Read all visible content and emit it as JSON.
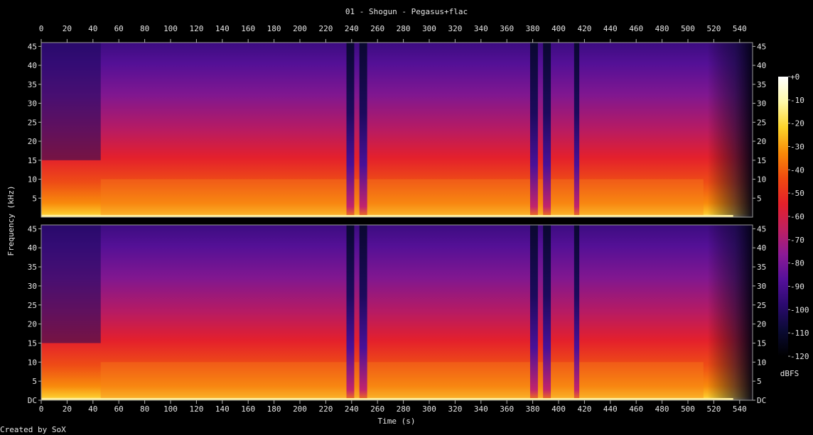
{
  "title": "01 - Shogun - Pegasus+flac",
  "credit": "Created by SoX",
  "chart_data": {
    "type": "heatmap",
    "subtype": "spectrogram",
    "title": "01 - Shogun - Pegasus+flac",
    "xlabel": "Time (s)",
    "ylabel": "Frequency (kHz)",
    "xlim": [
      0,
      550
    ],
    "ylim": [
      0,
      46
    ],
    "channels": 2,
    "x_ticks": [
      0,
      20,
      40,
      60,
      80,
      100,
      120,
      140,
      160,
      180,
      200,
      220,
      240,
      260,
      280,
      300,
      320,
      340,
      360,
      380,
      400,
      420,
      440,
      460,
      480,
      500,
      520,
      540
    ],
    "y_ticks": [
      {
        "value": 0,
        "label": "DC"
      },
      {
        "value": 5,
        "label": "5"
      },
      {
        "value": 10,
        "label": "10"
      },
      {
        "value": 15,
        "label": "15"
      },
      {
        "value": 20,
        "label": "20"
      },
      {
        "value": 25,
        "label": "25"
      },
      {
        "value": 30,
        "label": "30"
      },
      {
        "value": 35,
        "label": "35"
      },
      {
        "value": 40,
        "label": "40"
      },
      {
        "value": 45,
        "label": "45"
      }
    ],
    "colorbar": {
      "label": "dBFS",
      "range": [
        -120,
        0
      ],
      "ticks": [
        {
          "value": 0,
          "label": "+0"
        },
        {
          "value": -10,
          "label": "-10"
        },
        {
          "value": -20,
          "label": "-20"
        },
        {
          "value": -30,
          "label": "-30"
        },
        {
          "value": -40,
          "label": "-40"
        },
        {
          "value": -50,
          "label": "-50"
        },
        {
          "value": -60,
          "label": "-60"
        },
        {
          "value": -70,
          "label": "-70"
        },
        {
          "value": -80,
          "label": "-80"
        },
        {
          "value": -90,
          "label": "-90"
        },
        {
          "value": -100,
          "label": "-100"
        },
        {
          "value": -110,
          "label": "-110"
        },
        {
          "value": -120,
          "label": "-120"
        }
      ],
      "colors": [
        "#000000",
        "#0a0a33",
        "#2a0a6e",
        "#54109a",
        "#8c1a96",
        "#c02060",
        "#e6202a",
        "#f04a10",
        "#f88a08",
        "#fcd42a",
        "#fffaa8",
        "#ffffff"
      ]
    },
    "quiet_intervals_s": [
      [
        236,
        242
      ],
      [
        246,
        252
      ],
      [
        378,
        384
      ],
      [
        388,
        394
      ],
      [
        412,
        416
      ]
    ],
    "band_limit_khz": 10,
    "fade_out_start_s": 515
  }
}
